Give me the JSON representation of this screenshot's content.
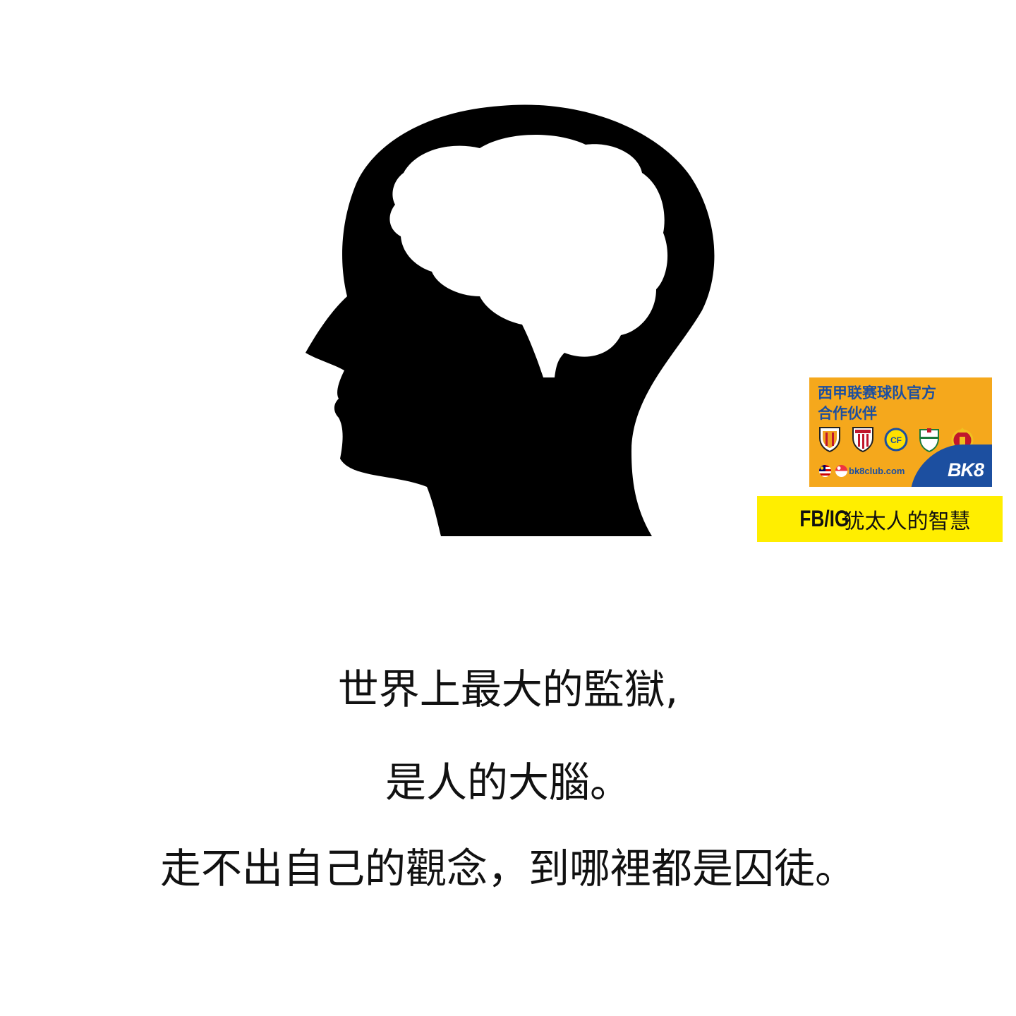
{
  "ad": {
    "title_line_1": "西甲联赛球队官方",
    "title_line_2": "合作伙伴",
    "url": "bk8club.com",
    "brand": "BK8"
  },
  "credit": {
    "handle": "FB/IG",
    "name": "犹太人的智慧"
  },
  "quote": {
    "line_1": "世界上最大的監獄,",
    "line_2": "是人的大腦。",
    "line_3": "走不出自己的觀念，到哪裡都是囚徒。"
  },
  "colors": {
    "ad_background": "#f5a81c",
    "ad_text": "#1c4fa0",
    "credit_background": "#ffee00",
    "silhouette": "#000000"
  },
  "icons": [
    "head-silhouette-icon",
    "brain-icon",
    "club-crest-icon",
    "flag-icon"
  ]
}
